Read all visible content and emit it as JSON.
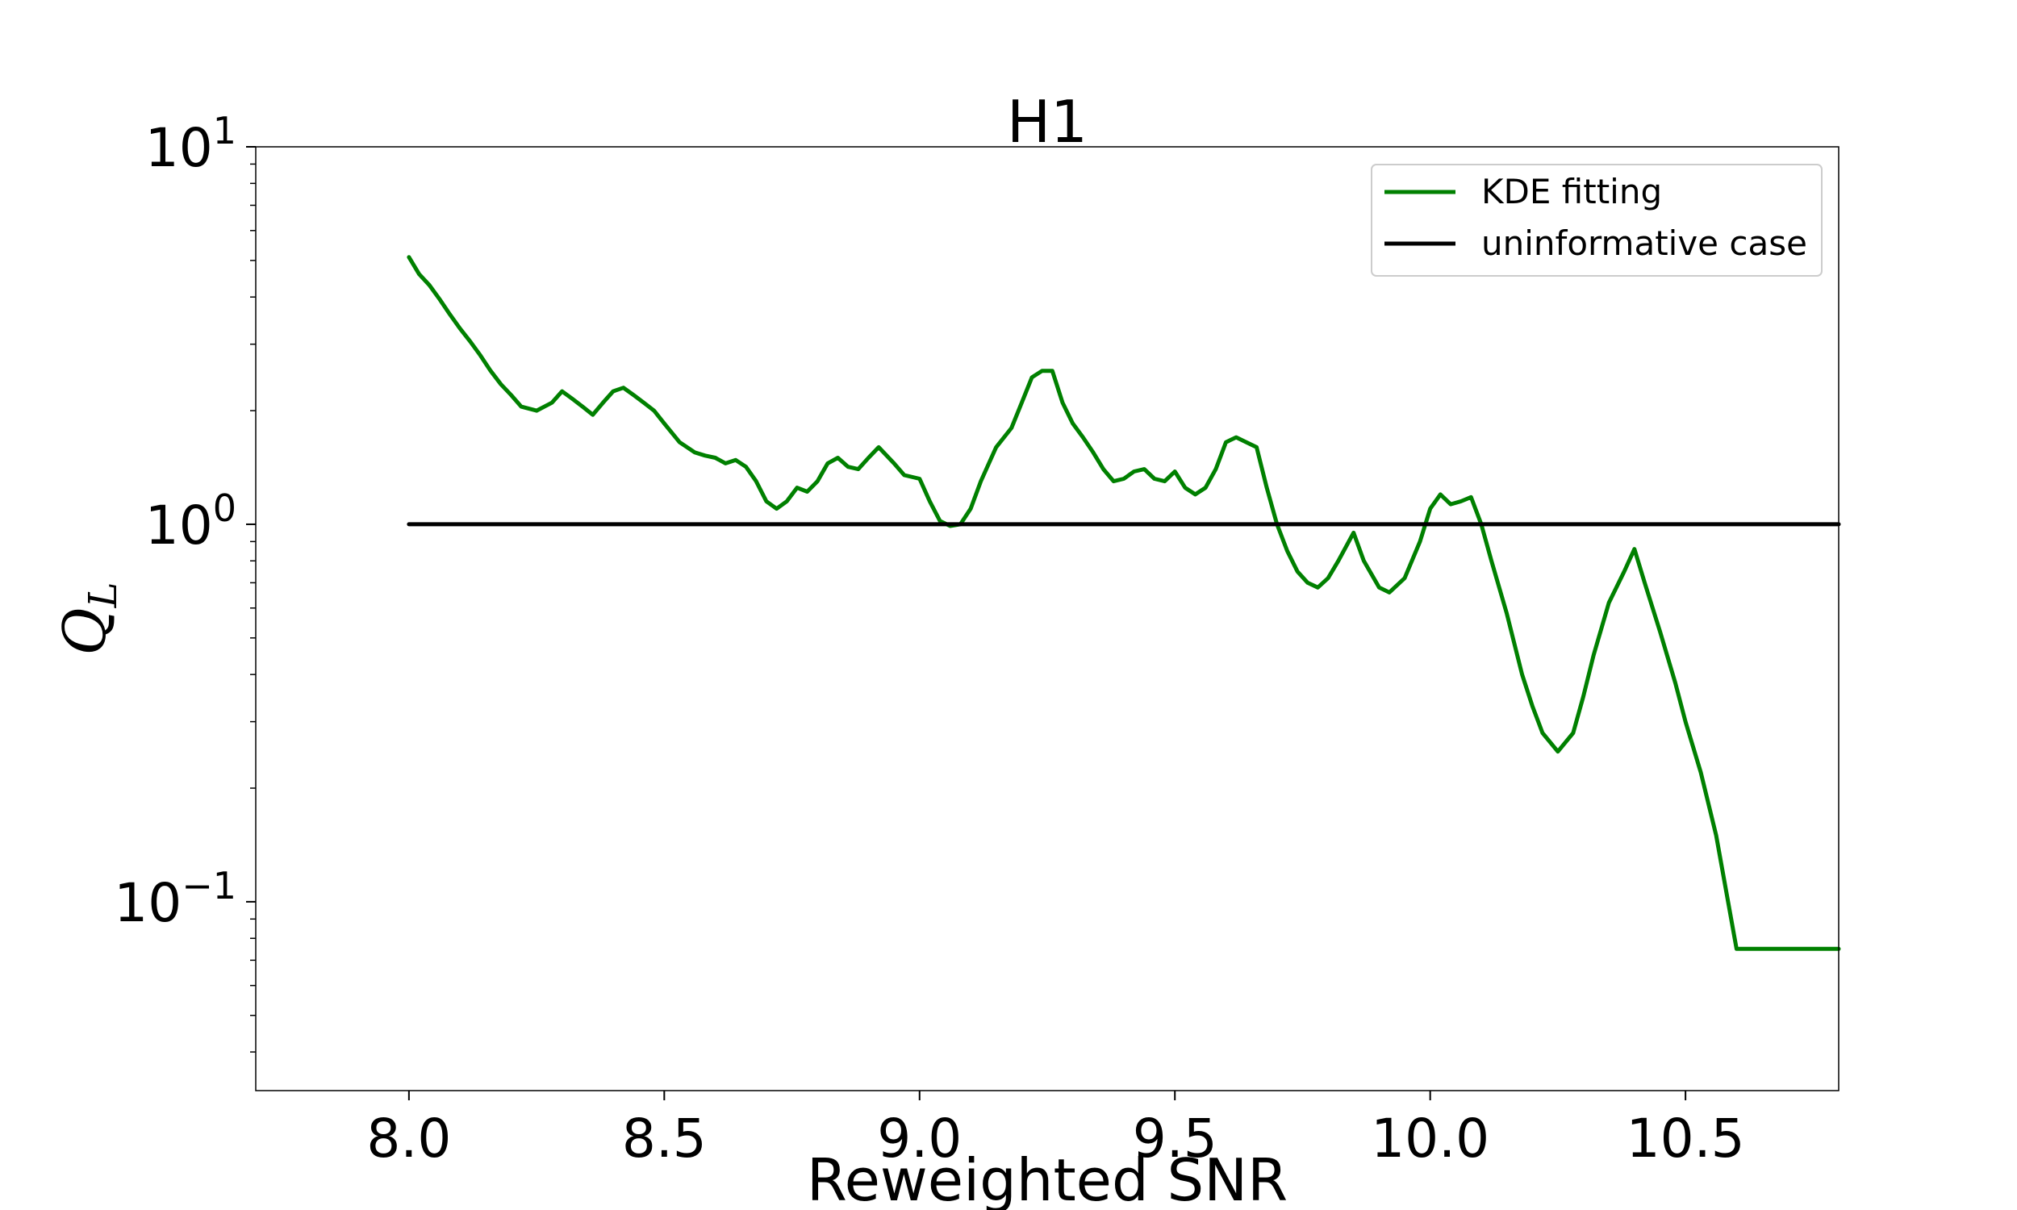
{
  "chart_data": {
    "type": "line",
    "title": "H1",
    "xlabel": "Reweighted SNR",
    "ylabel_main": "Q",
    "ylabel_sub": "L",
    "xlim": [
      7.7,
      10.8
    ],
    "ylim": [
      0.0316,
      10
    ],
    "yscale": "log",
    "xticks": [
      8.0,
      8.5,
      9.0,
      9.5,
      10.0,
      10.5
    ],
    "xtick_labels": [
      "8.0",
      "8.5",
      "9.0",
      "9.5",
      "10.0",
      "10.5"
    ],
    "yticks": [
      {
        "value": 10,
        "base": "10",
        "exp": "1"
      },
      {
        "value": 1,
        "base": "10",
        "exp": "0"
      },
      {
        "value": 0.1,
        "base": "10",
        "exp": "−1"
      }
    ],
    "grid": false,
    "legend_position": "top-right",
    "series": [
      {
        "name": "KDE fitting",
        "color": "#008000",
        "x": [
          8.0,
          8.02,
          8.04,
          8.06,
          8.08,
          8.1,
          8.12,
          8.14,
          8.16,
          8.18,
          8.2,
          8.22,
          8.25,
          8.28,
          8.3,
          8.32,
          8.34,
          8.36,
          8.38,
          8.4,
          8.42,
          8.44,
          8.46,
          8.48,
          8.5,
          8.53,
          8.56,
          8.58,
          8.6,
          8.62,
          8.64,
          8.66,
          8.68,
          8.7,
          8.72,
          8.74,
          8.76,
          8.78,
          8.8,
          8.82,
          8.84,
          8.86,
          8.88,
          8.9,
          8.92,
          8.95,
          8.97,
          9.0,
          9.02,
          9.04,
          9.06,
          9.08,
          9.1,
          9.12,
          9.15,
          9.18,
          9.2,
          9.22,
          9.24,
          9.26,
          9.28,
          9.3,
          9.32,
          9.34,
          9.36,
          9.38,
          9.4,
          9.42,
          9.44,
          9.46,
          9.48,
          9.5,
          9.52,
          9.54,
          9.56,
          9.58,
          9.6,
          9.62,
          9.64,
          9.66,
          9.68,
          9.7,
          9.72,
          9.74,
          9.76,
          9.78,
          9.8,
          9.82,
          9.85,
          9.87,
          9.9,
          9.92,
          9.95,
          9.98,
          10.0,
          10.02,
          10.04,
          10.06,
          10.08,
          10.1,
          10.12,
          10.15,
          10.18,
          10.2,
          10.22,
          10.25,
          10.28,
          10.3,
          10.32,
          10.35,
          10.38,
          10.4,
          10.42,
          10.45,
          10.48,
          10.5,
          10.53,
          10.56,
          10.6,
          10.7,
          10.8
        ],
        "y": [
          5.1,
          4.6,
          4.3,
          3.95,
          3.6,
          3.3,
          3.05,
          2.8,
          2.55,
          2.35,
          2.2,
          2.05,
          2.0,
          2.1,
          2.25,
          2.15,
          2.05,
          1.95,
          2.1,
          2.25,
          2.3,
          2.2,
          2.1,
          2.0,
          1.85,
          1.65,
          1.55,
          1.52,
          1.5,
          1.45,
          1.48,
          1.42,
          1.3,
          1.15,
          1.1,
          1.15,
          1.25,
          1.22,
          1.3,
          1.45,
          1.5,
          1.42,
          1.4,
          1.5,
          1.6,
          1.45,
          1.35,
          1.32,
          1.15,
          1.02,
          0.99,
          1.0,
          1.1,
          1.3,
          1.6,
          1.8,
          2.1,
          2.45,
          2.55,
          2.55,
          2.1,
          1.85,
          1.7,
          1.55,
          1.4,
          1.3,
          1.32,
          1.38,
          1.4,
          1.32,
          1.3,
          1.38,
          1.25,
          1.2,
          1.25,
          1.4,
          1.65,
          1.7,
          1.65,
          1.6,
          1.25,
          1.0,
          0.85,
          0.75,
          0.7,
          0.68,
          0.72,
          0.8,
          0.95,
          0.8,
          0.68,
          0.66,
          0.72,
          0.9,
          1.1,
          1.2,
          1.13,
          1.15,
          1.18,
          1.0,
          0.8,
          0.58,
          0.4,
          0.33,
          0.28,
          0.25,
          0.28,
          0.35,
          0.45,
          0.62,
          0.75,
          0.86,
          0.7,
          0.52,
          0.38,
          0.3,
          0.22,
          0.15,
          0.075,
          0.075,
          0.075
        ]
      },
      {
        "name": "uninformative case",
        "color": "#000000",
        "x": [
          8.0,
          10.8
        ],
        "y": [
          1.0,
          1.0
        ]
      }
    ]
  }
}
